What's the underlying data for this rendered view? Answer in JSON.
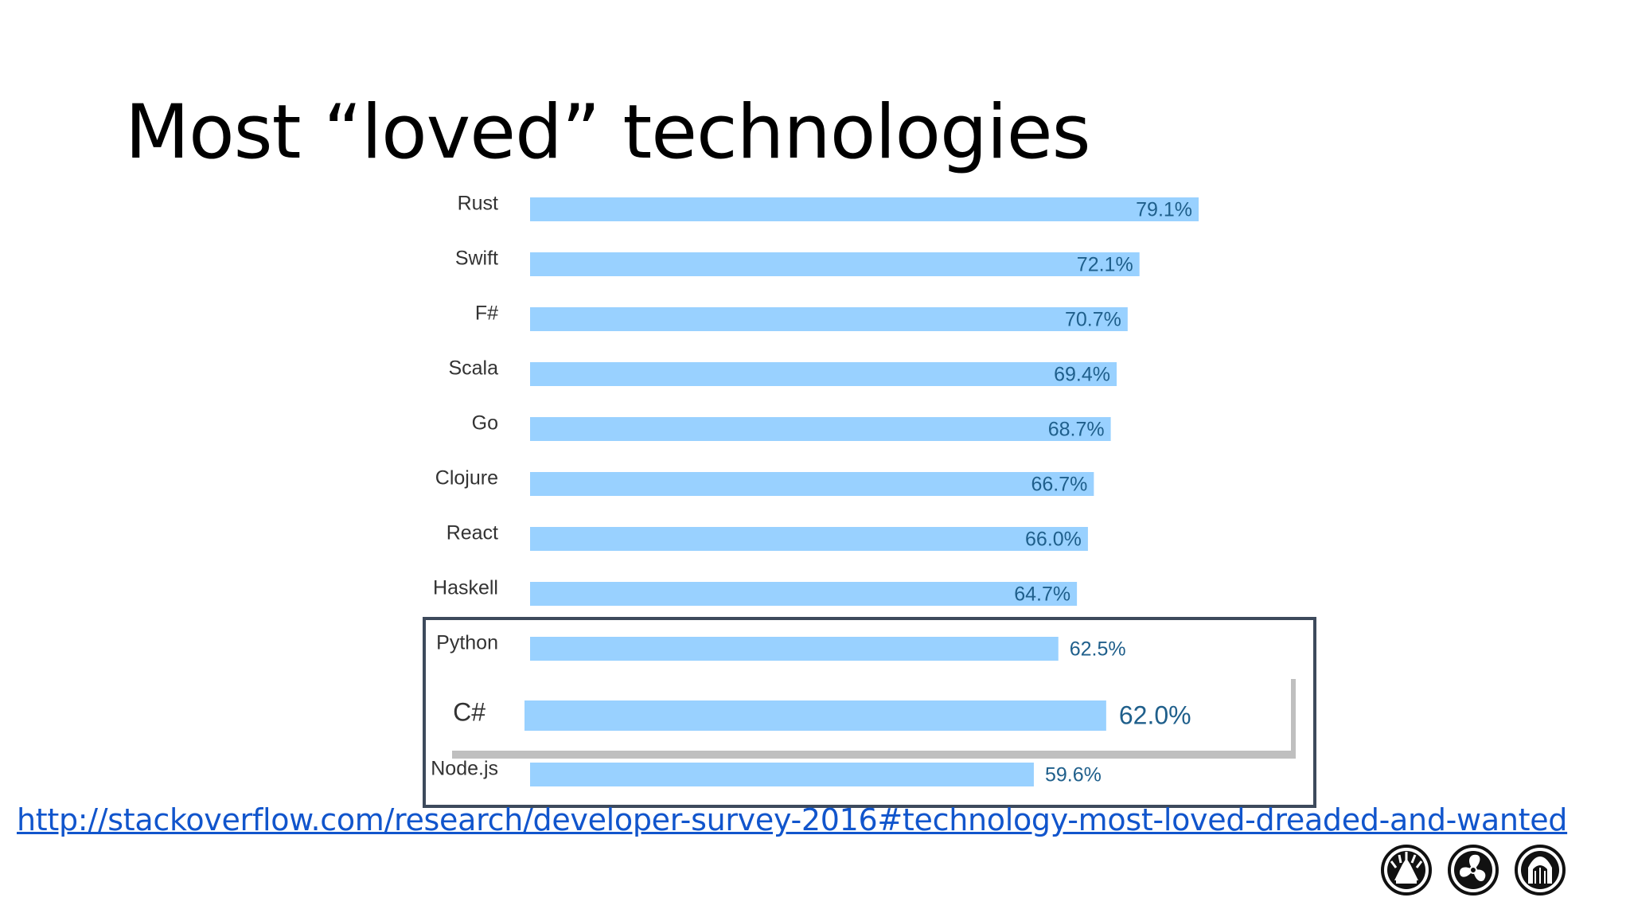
{
  "slide": {
    "title": "Most “loved” technologies",
    "link_text": "http://stackoverflow.com/research/developer-survey-2016#technology-most-loved-dreaded-and-wanted",
    "logos": [
      "statue-of-liberty-icon",
      "fan-icon",
      "bridge-icon"
    ]
  },
  "colors": {
    "bar": "#99d1ff",
    "value_text": "#1f5f8b",
    "highlight_border": "#3d4a5c",
    "link": "#1155cc"
  },
  "chart_data": {
    "type": "bar",
    "orientation": "horizontal",
    "categories": [
      "Rust",
      "Swift",
      "F#",
      "Scala",
      "Go",
      "Clojure",
      "React",
      "Haskell",
      "Python",
      "C#",
      "Node.js"
    ],
    "values": [
      79.1,
      72.1,
      70.7,
      69.4,
      68.7,
      66.7,
      66.0,
      64.7,
      62.5,
      62.0,
      59.6
    ],
    "labels": [
      "79.1%",
      "72.1%",
      "70.7%",
      "69.4%",
      "68.7%",
      "66.7%",
      "66.0%",
      "64.7%",
      "62.5%",
      "62.0%",
      "59.6%"
    ],
    "highlighted": [
      "Python",
      "C#",
      "Node.js"
    ],
    "emphasized": "C#",
    "title": "Most “loved” technologies",
    "xlabel": "",
    "ylabel": "",
    "unit": "%"
  }
}
